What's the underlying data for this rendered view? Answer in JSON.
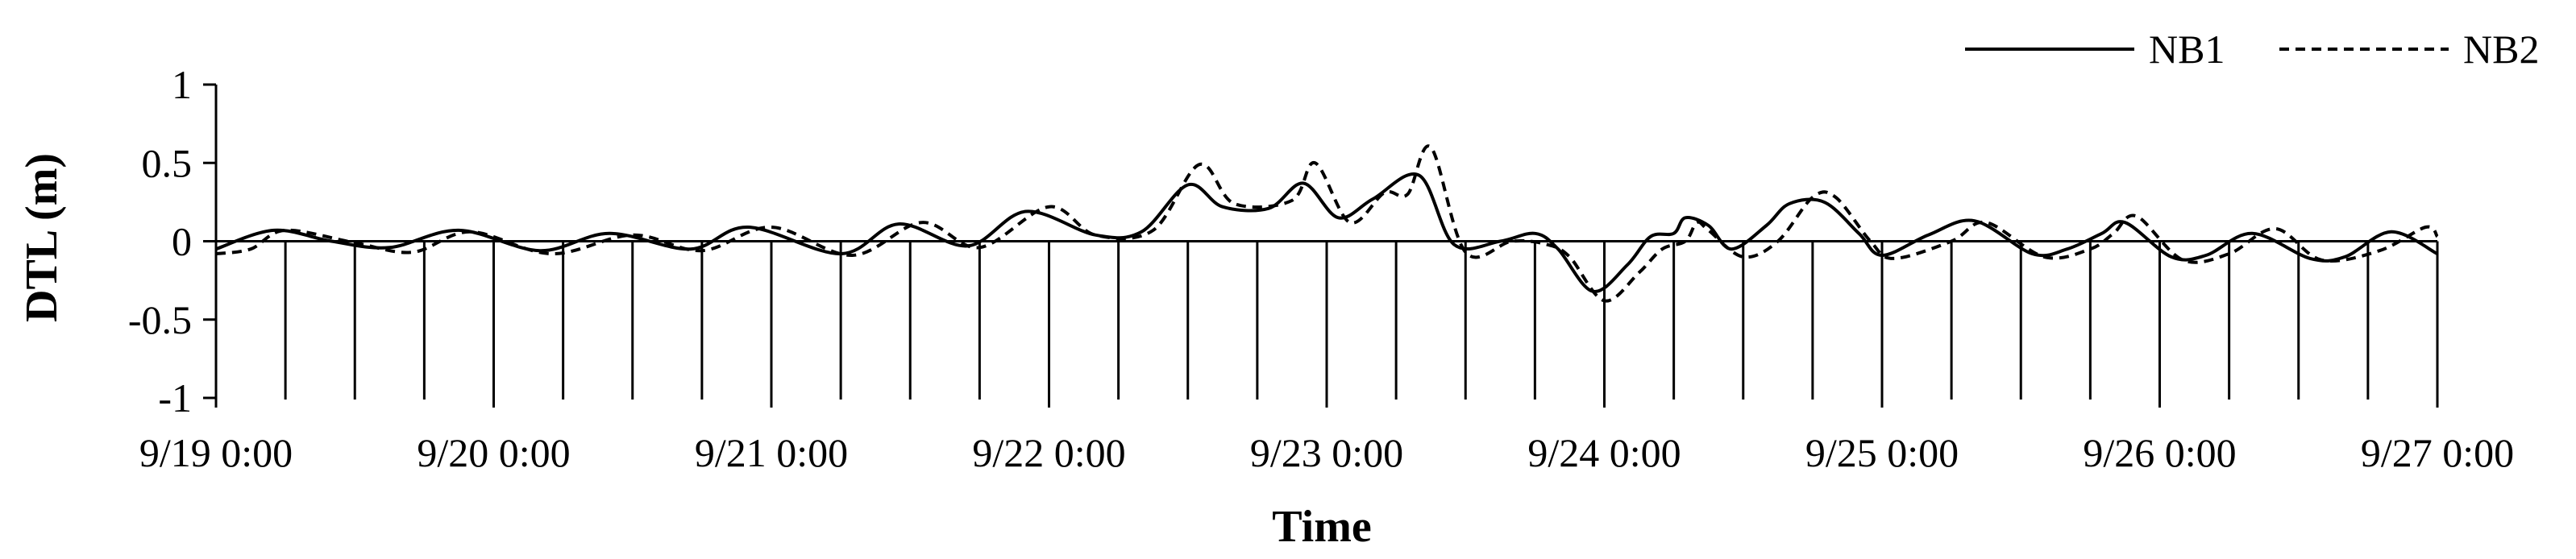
{
  "chart_data": {
    "type": "line",
    "title": "",
    "xlabel": "Time",
    "ylabel": "DTL (m)",
    "xlim": [
      "9/19 0:00",
      "9/27 0:00"
    ],
    "ylim": [
      -1,
      1
    ],
    "x_ticks": [
      "9/19 0:00",
      "9/20 0:00",
      "9/21 0:00",
      "9/22 0:00",
      "9/23 0:00",
      "9/24 0:00",
      "9/25 0:00",
      "9/26 0:00",
      "9/27 0:00"
    ],
    "y_ticks": [
      "1",
      "0.5",
      "0",
      "-0.5",
      "-1"
    ],
    "grid": false,
    "legend_position": "top-right",
    "series": [
      {
        "name": "NB1",
        "style": "solid",
        "color": "#000000",
        "points": [
          [
            "9/19 0:00",
            -0.05
          ],
          [
            "9/19 5:00",
            0.07
          ],
          [
            "9/19 10:00",
            0.0
          ],
          [
            "9/19 15:00",
            -0.04
          ],
          [
            "9/19 21:00",
            0.07
          ],
          [
            "9/20 4:00",
            -0.06
          ],
          [
            "9/20 10:00",
            0.05
          ],
          [
            "9/20 17:00",
            -0.05
          ],
          [
            "9/20 22:00",
            0.09
          ],
          [
            "9/21 6:00",
            -0.08
          ],
          [
            "9/21 11:00",
            0.11
          ],
          [
            "9/21 17:00",
            -0.03
          ],
          [
            "9/21 22:00",
            0.19
          ],
          [
            "9/22 4:00",
            0.04
          ],
          [
            "9/22 8:00",
            0.06
          ],
          [
            "9/22 12:00",
            0.36
          ],
          [
            "9/22 15:00",
            0.22
          ],
          [
            "9/22 19:00",
            0.21
          ],
          [
            "9/22 22:00",
            0.37
          ],
          [
            "9/23 1:00",
            0.15
          ],
          [
            "9/23 4:00",
            0.27
          ],
          [
            "9/23 8:00",
            0.42
          ],
          [
            "9/23 11:00",
            -0.02
          ],
          [
            "9/23 15:00",
            0.0
          ],
          [
            "9/23 18:00",
            0.05
          ],
          [
            "9/23 20:00",
            -0.05
          ],
          [
            "9/23 23:00",
            -0.32
          ],
          [
            "9/24 2:00",
            -0.15
          ],
          [
            "9/24 4:00",
            0.03
          ],
          [
            "9/24 6:00",
            0.05
          ],
          [
            "9/24 7:00",
            0.15
          ],
          [
            "9/24 9:00",
            0.1
          ],
          [
            "9/24 11:00",
            -0.05
          ],
          [
            "9/24 14:00",
            0.1
          ],
          [
            "9/24 16:00",
            0.24
          ],
          [
            "9/24 19:00",
            0.25
          ],
          [
            "9/24 22:00",
            0.05
          ],
          [
            "9/25 0:00",
            -0.09
          ],
          [
            "9/25 4:00",
            0.04
          ],
          [
            "9/25 8:00",
            0.13
          ],
          [
            "9/25 13:00",
            -0.08
          ],
          [
            "9/25 16:00",
            -0.05
          ],
          [
            "9/25 19:00",
            0.05
          ],
          [
            "9/25 21:00",
            0.12
          ],
          [
            "9/26 1:00",
            -0.1
          ],
          [
            "9/26 4:00",
            -0.09
          ],
          [
            "9/26 8:00",
            0.05
          ],
          [
            "9/26 13:00",
            -0.11
          ],
          [
            "9/26 16:00",
            -0.1
          ],
          [
            "9/26 20:00",
            0.06
          ],
          [
            "9/27 0:00",
            -0.08
          ]
        ]
      },
      {
        "name": "NB2",
        "style": "dashed",
        "color": "#000000",
        "points": [
          [
            "9/19 0:00",
            -0.08
          ],
          [
            "9/19 3:00",
            -0.05
          ],
          [
            "9/19 6:00",
            0.07
          ],
          [
            "9/19 12:00",
            -0.01
          ],
          [
            "9/19 17:00",
            -0.07
          ],
          [
            "9/19 22:00",
            0.06
          ],
          [
            "9/20 5:00",
            -0.08
          ],
          [
            "9/20 12:00",
            0.04
          ],
          [
            "9/20 18:00",
            -0.06
          ],
          [
            "9/21 0:00",
            0.09
          ],
          [
            "9/21 7:00",
            -0.09
          ],
          [
            "9/21 13:00",
            0.12
          ],
          [
            "9/21 18:00",
            -0.04
          ],
          [
            "9/22 0:00",
            0.22
          ],
          [
            "9/22 4:00",
            0.04
          ],
          [
            "9/22 9:00",
            0.07
          ],
          [
            "9/22 13:00",
            0.49
          ],
          [
            "9/22 16:00",
            0.24
          ],
          [
            "9/22 21:00",
            0.26
          ],
          [
            "9/22 23:00",
            0.5
          ],
          [
            "9/23 2:00",
            0.12
          ],
          [
            "9/23 5:00",
            0.31
          ],
          [
            "9/23 7:00",
            0.3
          ],
          [
            "9/23 9:00",
            0.6
          ],
          [
            "9/23 12:00",
            -0.07
          ],
          [
            "9/23 16:00",
            0.0
          ],
          [
            "9/23 19:00",
            -0.02
          ],
          [
            "9/23 21:00",
            -0.1
          ],
          [
            "9/24 0:00",
            -0.38
          ],
          [
            "9/24 3:00",
            -0.2
          ],
          [
            "9/24 5:00",
            -0.05
          ],
          [
            "9/24 7:00",
            0.0
          ],
          [
            "9/24 8:00",
            0.12
          ],
          [
            "9/24 9:00",
            0.07
          ],
          [
            "9/24 12:00",
            -0.1
          ],
          [
            "9/24 15:00",
            0.0
          ],
          [
            "9/24 18:00",
            0.28
          ],
          [
            "9/24 20:00",
            0.28
          ],
          [
            "9/24 23:00",
            0.0
          ],
          [
            "9/25 1:00",
            -0.11
          ],
          [
            "9/25 6:00",
            0.0
          ],
          [
            "9/25 9:00",
            0.12
          ],
          [
            "9/25 14:00",
            -0.1
          ],
          [
            "9/25 18:00",
            -0.05
          ],
          [
            "9/25 20:00",
            0.05
          ],
          [
            "9/25 22:00",
            0.16
          ],
          [
            "9/26 2:00",
            -0.12
          ],
          [
            "9/26 6:00",
            -0.08
          ],
          [
            "9/26 10:00",
            0.08
          ],
          [
            "9/26 14:00",
            -0.12
          ],
          [
            "9/26 19:00",
            -0.06
          ],
          [
            "9/26 23:00",
            0.09
          ],
          [
            "9/27 0:00",
            0.03
          ]
        ]
      }
    ]
  }
}
